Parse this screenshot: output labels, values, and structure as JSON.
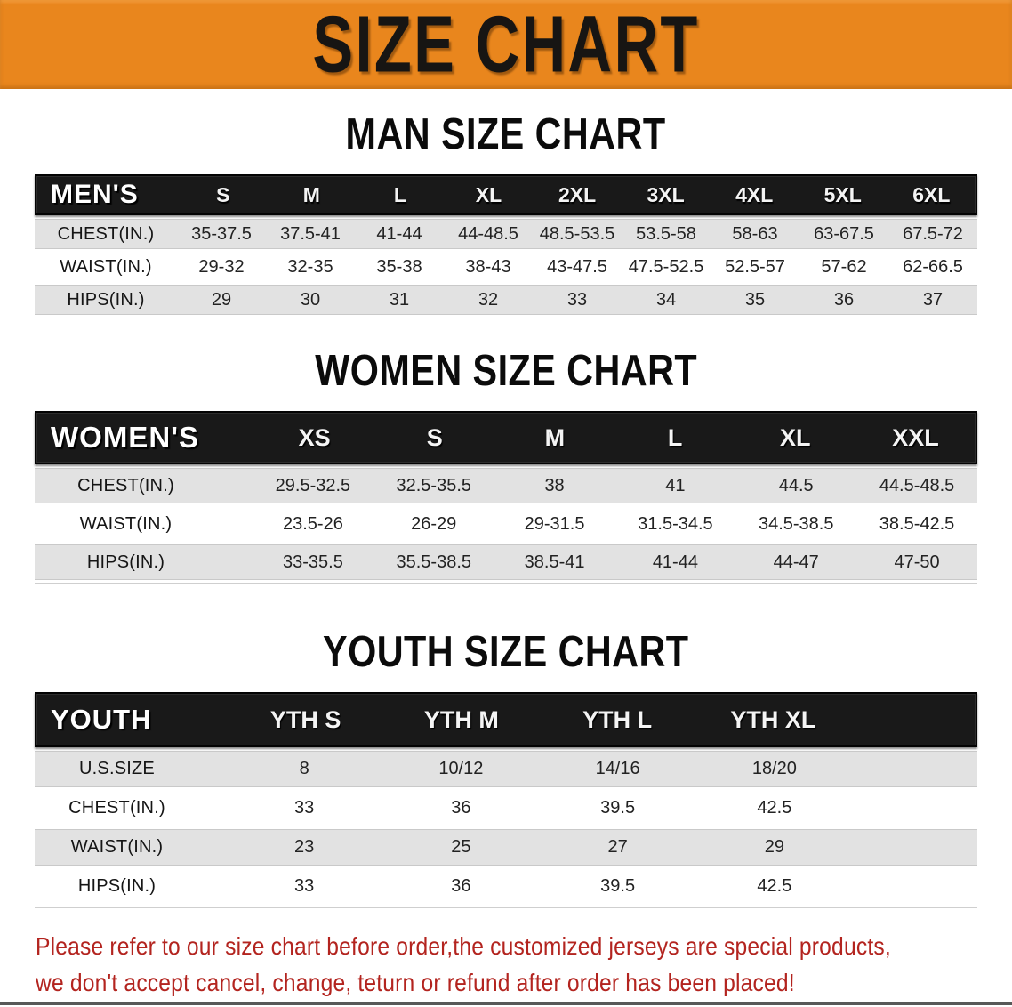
{
  "banner": {
    "title": "SIZE CHART"
  },
  "sections": [
    {
      "id": "men",
      "heading": "MAN SIZE CHART",
      "table": {
        "label": "MEN'S",
        "columns": [
          "S",
          "M",
          "L",
          "XL",
          "2XL",
          "3XL",
          "4XL",
          "5XL",
          "6XL"
        ],
        "rows": [
          {
            "label": "CHEST(IN.)",
            "values": [
              "35-37.5",
              "37.5-41",
              "41-44",
              "44-48.5",
              "48.5-53.5",
              "53.5-58",
              "58-63",
              "63-67.5",
              "67.5-72"
            ]
          },
          {
            "label": "WAIST(IN.)",
            "values": [
              "29-32",
              "32-35",
              "35-38",
              "38-43",
              "43-47.5",
              "47.5-52.5",
              "52.5-57",
              "57-62",
              "62-66.5"
            ]
          },
          {
            "label": "HIPS(IN.)",
            "values": [
              "29",
              "30",
              "31",
              "32",
              "33",
              "34",
              "35",
              "36",
              "37"
            ]
          }
        ]
      }
    },
    {
      "id": "women",
      "heading": "WOMEN SIZE CHART",
      "table": {
        "label": "WOMEN'S",
        "columns": [
          "XS",
          "S",
          "M",
          "L",
          "XL",
          "XXL"
        ],
        "rows": [
          {
            "label": "CHEST(IN.)",
            "values": [
              "29.5-32.5",
              "32.5-35.5",
              "38",
              "41",
              "44.5",
              "44.5-48.5"
            ]
          },
          {
            "label": "WAIST(IN.)",
            "values": [
              "23.5-26",
              "26-29",
              "29-31.5",
              "31.5-34.5",
              "34.5-38.5",
              "38.5-42.5"
            ]
          },
          {
            "label": "HIPS(IN.)",
            "values": [
              "33-35.5",
              "35.5-38.5",
              "38.5-41",
              "41-44",
              "44-47",
              "47-50"
            ]
          }
        ]
      }
    },
    {
      "id": "youth",
      "heading": "YOUTH SIZE CHART",
      "table": {
        "label": "YOUTH",
        "columns": [
          "YTH S",
          "YTH M",
          "YTH L",
          "YTH XL"
        ],
        "rows": [
          {
            "label": "U.S.SIZE",
            "values": [
              "8",
              "10/12",
              "14/16",
              "18/20"
            ]
          },
          {
            "label": "CHEST(IN.)",
            "values": [
              "33",
              "36",
              "39.5",
              "42.5"
            ]
          },
          {
            "label": "WAIST(IN.)",
            "values": [
              "23",
              "25",
              "27",
              "29"
            ]
          },
          {
            "label": "HIPS(IN.)",
            "values": [
              "33",
              "36",
              "39.5",
              "42.5"
            ]
          }
        ]
      }
    }
  ],
  "notice": {
    "line1": "Please refer to our size chart before order,the customized jerseys are special products,",
    "line2": "we don't accept cancel, change, teturn or refund after order has been placed!"
  },
  "colors": {
    "banner_bg": "#E9861D",
    "header_bar": "#191919",
    "row_stripe": "#E2E2E2",
    "notice_text": "#B3241F"
  }
}
